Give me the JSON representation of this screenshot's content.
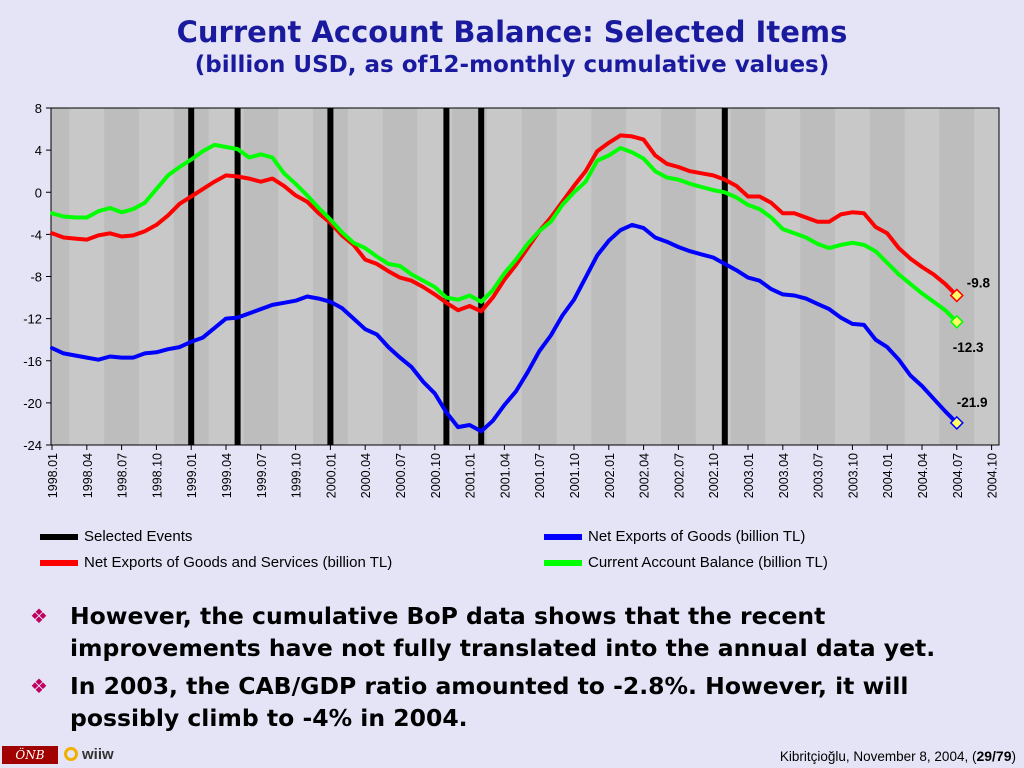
{
  "slide": {
    "title": "Current Account Balance: Selected Items",
    "subtitle": "(billion USD, as of12-monthly cumulative values)",
    "bullets": [
      "However, the cumulative BoP data shows that the recent improvements have not fully translated into the annual data yet.",
      "In 2003, the CAB/GDP ratio amounted to -2.8%. However, it will possibly climb to -4% in 2004."
    ],
    "footer": {
      "logo_left": "ÖNB",
      "logo_right": "wiiw",
      "credit": "Kibritçioğlu, November 8, 2004, (",
      "page": "29/79",
      "credit_end": ")"
    }
  },
  "colors": {
    "background": "#e4e4f6",
    "plot_bg": "#c8c8c8",
    "title": "#1a1a9e",
    "events": "#000000",
    "goods": "#0000ff",
    "goods_services": "#ff0000",
    "cab": "#00ff00"
  },
  "chart_data": {
    "type": "line",
    "ylim": [
      -24,
      8
    ],
    "yticks": [
      8,
      4,
      0,
      -4,
      -8,
      -12,
      -16,
      -20,
      -24
    ],
    "grid": "vertical bands",
    "x_tick_labels": [
      "1998.01",
      "1998.04",
      "1998.07",
      "1998.10",
      "1999.01",
      "1999.04",
      "1999.07",
      "1999.10",
      "2000.01",
      "2000.04",
      "2000.07",
      "2000.10",
      "2001.01",
      "2001.04",
      "2001.07",
      "2001.10",
      "2002.01",
      "2002.04",
      "2002.07",
      "2002.10",
      "2003.01",
      "2003.04",
      "2003.07",
      "2003.10",
      "2004.01",
      "2004.04",
      "2004.07",
      "2004.10"
    ],
    "x_start": "1998.01",
    "events": [
      "1999.01",
      "1999.05",
      "2000.01",
      "2000.11",
      "2001.02",
      "2002.11"
    ],
    "series": [
      {
        "name": "Net Exports of Goods (billion TL)",
        "color": "#0000ff",
        "end_label": "-21.9",
        "values": [
          -14.8,
          -15.3,
          -15.5,
          -15.7,
          -15.9,
          -15.6,
          -15.7,
          -15.7,
          -15.3,
          -15.2,
          -14.9,
          -14.7,
          -14.2,
          -13.8,
          -12.9,
          -12.0,
          -11.9,
          -11.5,
          -11.1,
          -10.7,
          -10.5,
          -10.3,
          -9.9,
          -10.1,
          -10.4,
          -11.0,
          -12.0,
          -13.0,
          -13.5,
          -14.7,
          -15.7,
          -16.6,
          -18.0,
          -19.1,
          -20.9,
          -22.3,
          -22.1,
          -22.7,
          -21.7,
          -20.2,
          -18.9,
          -17.1,
          -15.1,
          -13.6,
          -11.7,
          -10.2,
          -8.1,
          -6.0,
          -4.6,
          -3.6,
          -3.1,
          -3.4,
          -4.3,
          -4.7,
          -5.2,
          -5.6,
          -5.9,
          -6.2,
          -6.8,
          -7.4,
          -8.1,
          -8.4,
          -9.2,
          -9.7,
          -9.8,
          -10.1,
          -10.6,
          -11.1,
          -11.9,
          -12.5,
          -12.6,
          -14.0,
          -14.7,
          -15.9,
          -17.4,
          -18.4,
          -19.6,
          -20.8,
          -21.9
        ]
      },
      {
        "name": "Net Exports of Goods and Services (billion TL)",
        "color": "#ff0000",
        "end_label": "-9.8",
        "values": [
          -3.9,
          -4.3,
          -4.4,
          -4.5,
          -4.1,
          -3.9,
          -4.2,
          -4.1,
          -3.7,
          -3.1,
          -2.2,
          -1.1,
          -0.4,
          0.3,
          1.0,
          1.6,
          1.5,
          1.3,
          1.0,
          1.3,
          0.6,
          -0.3,
          -0.9,
          -2.0,
          -2.9,
          -4.1,
          -5.0,
          -6.4,
          -6.8,
          -7.5,
          -8.1,
          -8.4,
          -9.0,
          -9.7,
          -10.5,
          -11.2,
          -10.8,
          -11.3,
          -10.0,
          -8.3,
          -6.9,
          -5.3,
          -3.7,
          -2.4,
          -0.9,
          0.6,
          2.0,
          3.9,
          4.7,
          5.4,
          5.3,
          5.0,
          3.5,
          2.7,
          2.4,
          2.0,
          1.8,
          1.6,
          1.2,
          0.6,
          -0.4,
          -0.4,
          -1.0,
          -2.0,
          -2.0,
          -2.4,
          -2.8,
          -2.8,
          -2.1,
          -1.9,
          -2.0,
          -3.3,
          -3.9,
          -5.3,
          -6.3,
          -7.1,
          -7.8,
          -8.7,
          -9.8
        ]
      },
      {
        "name": "Current Account Balance (billion TL)",
        "color": "#00ff00",
        "end_label": "-12.3",
        "values": [
          -2.0,
          -2.3,
          -2.4,
          -2.4,
          -1.8,
          -1.5,
          -1.9,
          -1.6,
          -1.0,
          0.3,
          1.6,
          2.4,
          3.1,
          3.9,
          4.5,
          4.3,
          4.1,
          3.3,
          3.6,
          3.3,
          1.8,
          0.8,
          -0.3,
          -1.5,
          -2.6,
          -3.8,
          -4.8,
          -5.3,
          -6.1,
          -6.8,
          -7.0,
          -7.8,
          -8.4,
          -9.0,
          -10.0,
          -10.2,
          -9.8,
          -10.4,
          -9.3,
          -7.7,
          -6.4,
          -4.9,
          -3.7,
          -2.8,
          -1.2,
          0.0,
          1.0,
          3.0,
          3.5,
          4.2,
          3.8,
          3.2,
          2.0,
          1.4,
          1.2,
          0.8,
          0.5,
          0.2,
          0.0,
          -0.5,
          -1.2,
          -1.6,
          -2.4,
          -3.5,
          -3.9,
          -4.3,
          -4.9,
          -5.3,
          -5.0,
          -4.8,
          -5.0,
          -5.6,
          -6.7,
          -7.8,
          -8.7,
          -9.6,
          -10.4,
          -11.2,
          -12.3
        ]
      }
    ],
    "legend": {
      "placement": "bottom",
      "entries": [
        {
          "label": "Selected Events",
          "color": "#000000"
        },
        {
          "label": "Net Exports of Goods (billion TL)",
          "color": "#0000ff"
        },
        {
          "label": "Net Exports of Goods and Services (billion TL)",
          "color": "#ff0000"
        },
        {
          "label": "Current Account Balance (billion TL)",
          "color": "#00ff00"
        }
      ]
    }
  }
}
